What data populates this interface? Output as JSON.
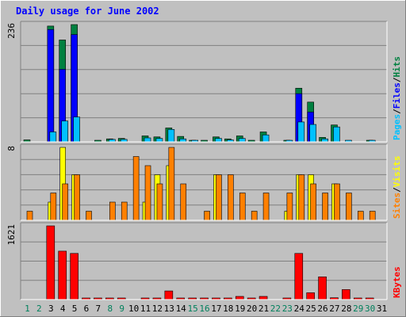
{
  "chart_data": {
    "type": "bar",
    "title": "Daily usage for June 2002",
    "days": [
      1,
      2,
      3,
      4,
      5,
      6,
      7,
      8,
      9,
      10,
      11,
      12,
      13,
      14,
      15,
      16,
      17,
      18,
      19,
      20,
      21,
      22,
      23,
      24,
      25,
      26,
      27,
      28,
      29,
      30,
      31
    ],
    "weekend_days": [
      1,
      2,
      8,
      9,
      15,
      16,
      22,
      23,
      29,
      30
    ],
    "colors": {
      "hits": "#008040",
      "files": "#0000ff",
      "pages": "#00c0ff",
      "visits": "#ffff00",
      "sites": "#ff8000",
      "kbytes": "#ff0000",
      "title": "#0000ff",
      "weekday_label": "#000000",
      "weekend_label": "#00805c"
    },
    "panels": [
      {
        "id": "top",
        "ymax": 236,
        "ymax_label": "236",
        "legend": [
          {
            "text": "Pages",
            "color": "#00c0ff"
          },
          {
            "text": "/",
            "color": "#000000"
          },
          {
            "text": "Files",
            "color": "#0000ff"
          },
          {
            "text": "/",
            "color": "#000000"
          },
          {
            "text": "Hits",
            "color": "#008040"
          }
        ],
        "series": [
          {
            "name": "Hits",
            "color": "#008040",
            "values": [
              4,
              0,
              233,
              205,
              236,
              0,
              3,
              6,
              7,
              0,
              12,
              10,
              28,
              11,
              3,
              2,
              10,
              6,
              12,
              1,
              20,
              0,
              3,
              108,
              80,
              9,
              34,
              0,
              0,
              1,
              0
            ]
          },
          {
            "name": "Files",
            "color": "#0000ff",
            "values": [
              0,
              0,
              226,
              146,
              216,
              0,
              0,
              0,
              0,
              0,
              0,
              0,
              0,
              0,
              0,
              0,
              0,
              0,
              0,
              0,
              0,
              0,
              0,
              97,
              60,
              0,
              0,
              0,
              0,
              0,
              0
            ]
          },
          {
            "name": "Pages",
            "color": "#00c0ff",
            "values": [
              0,
              0,
              20,
              42,
              50,
              0,
              0,
              5,
              5,
              0,
              8,
              7,
              25,
              6,
              2,
              0,
              7,
              4,
              7,
              0,
              14,
              0,
              2,
              40,
              35,
              6,
              30,
              3,
              0,
              1,
              0
            ]
          }
        ]
      },
      {
        "id": "middle",
        "ymax": 8,
        "ymax_label": "8",
        "legend": [
          {
            "text": "Sites",
            "color": "#ff8000"
          },
          {
            "text": "/",
            "color": "#000000"
          },
          {
            "text": "Visits",
            "color": "#ffff00"
          }
        ],
        "series": [
          {
            "name": "Visits",
            "color": "#ffff00",
            "values": [
              0,
              0,
              0,
              0,
              0,
              0,
              0,
              0,
              0,
              0,
              0,
              0,
              0,
              0,
              0,
              0,
              0,
              0,
              0,
              0,
              0,
              0,
              0,
              0,
              0,
              0,
              0,
              0,
              0,
              0,
              0
            ]
          },
          {
            "name": "Visits",
            "color": "#ffff00",
            "values": [
              0,
              0,
              2,
              8,
              5,
              0,
              0,
              0,
              0,
              0,
              2,
              5,
              6,
              0,
              0,
              0,
              5,
              0,
              0,
              0,
              0,
              0,
              1,
              5,
              5,
              0,
              4,
              0,
              0,
              0,
              0
            ]
          },
          {
            "name": "Sites",
            "color": "#ff8000",
            "values": [
              1,
              0,
              3,
              4,
              5,
              1,
              0,
              2,
              2,
              7,
              6,
              4,
              8,
              4,
              0,
              1,
              5,
              5,
              3,
              1,
              3,
              0,
              3,
              5,
              4,
              3,
              4,
              3,
              1,
              1,
              0
            ]
          }
        ]
      },
      {
        "id": "bottom",
        "ymax": 1621,
        "ymax_label": "1621",
        "legend": [
          {
            "text": "KBytes",
            "color": "#ff0000"
          }
        ],
        "series": [
          {
            "name": "KBytes",
            "color": "#ff0000",
            "values": [
              0,
              0,
              1621,
              1065,
              1015,
              10,
              10,
              10,
              10,
              0,
              10,
              10,
              190,
              10,
              10,
              10,
              10,
              10,
              70,
              10,
              70,
              0,
              10,
              1015,
              150,
              500,
              40,
              220,
              10,
              10,
              0
            ]
          }
        ]
      }
    ]
  }
}
